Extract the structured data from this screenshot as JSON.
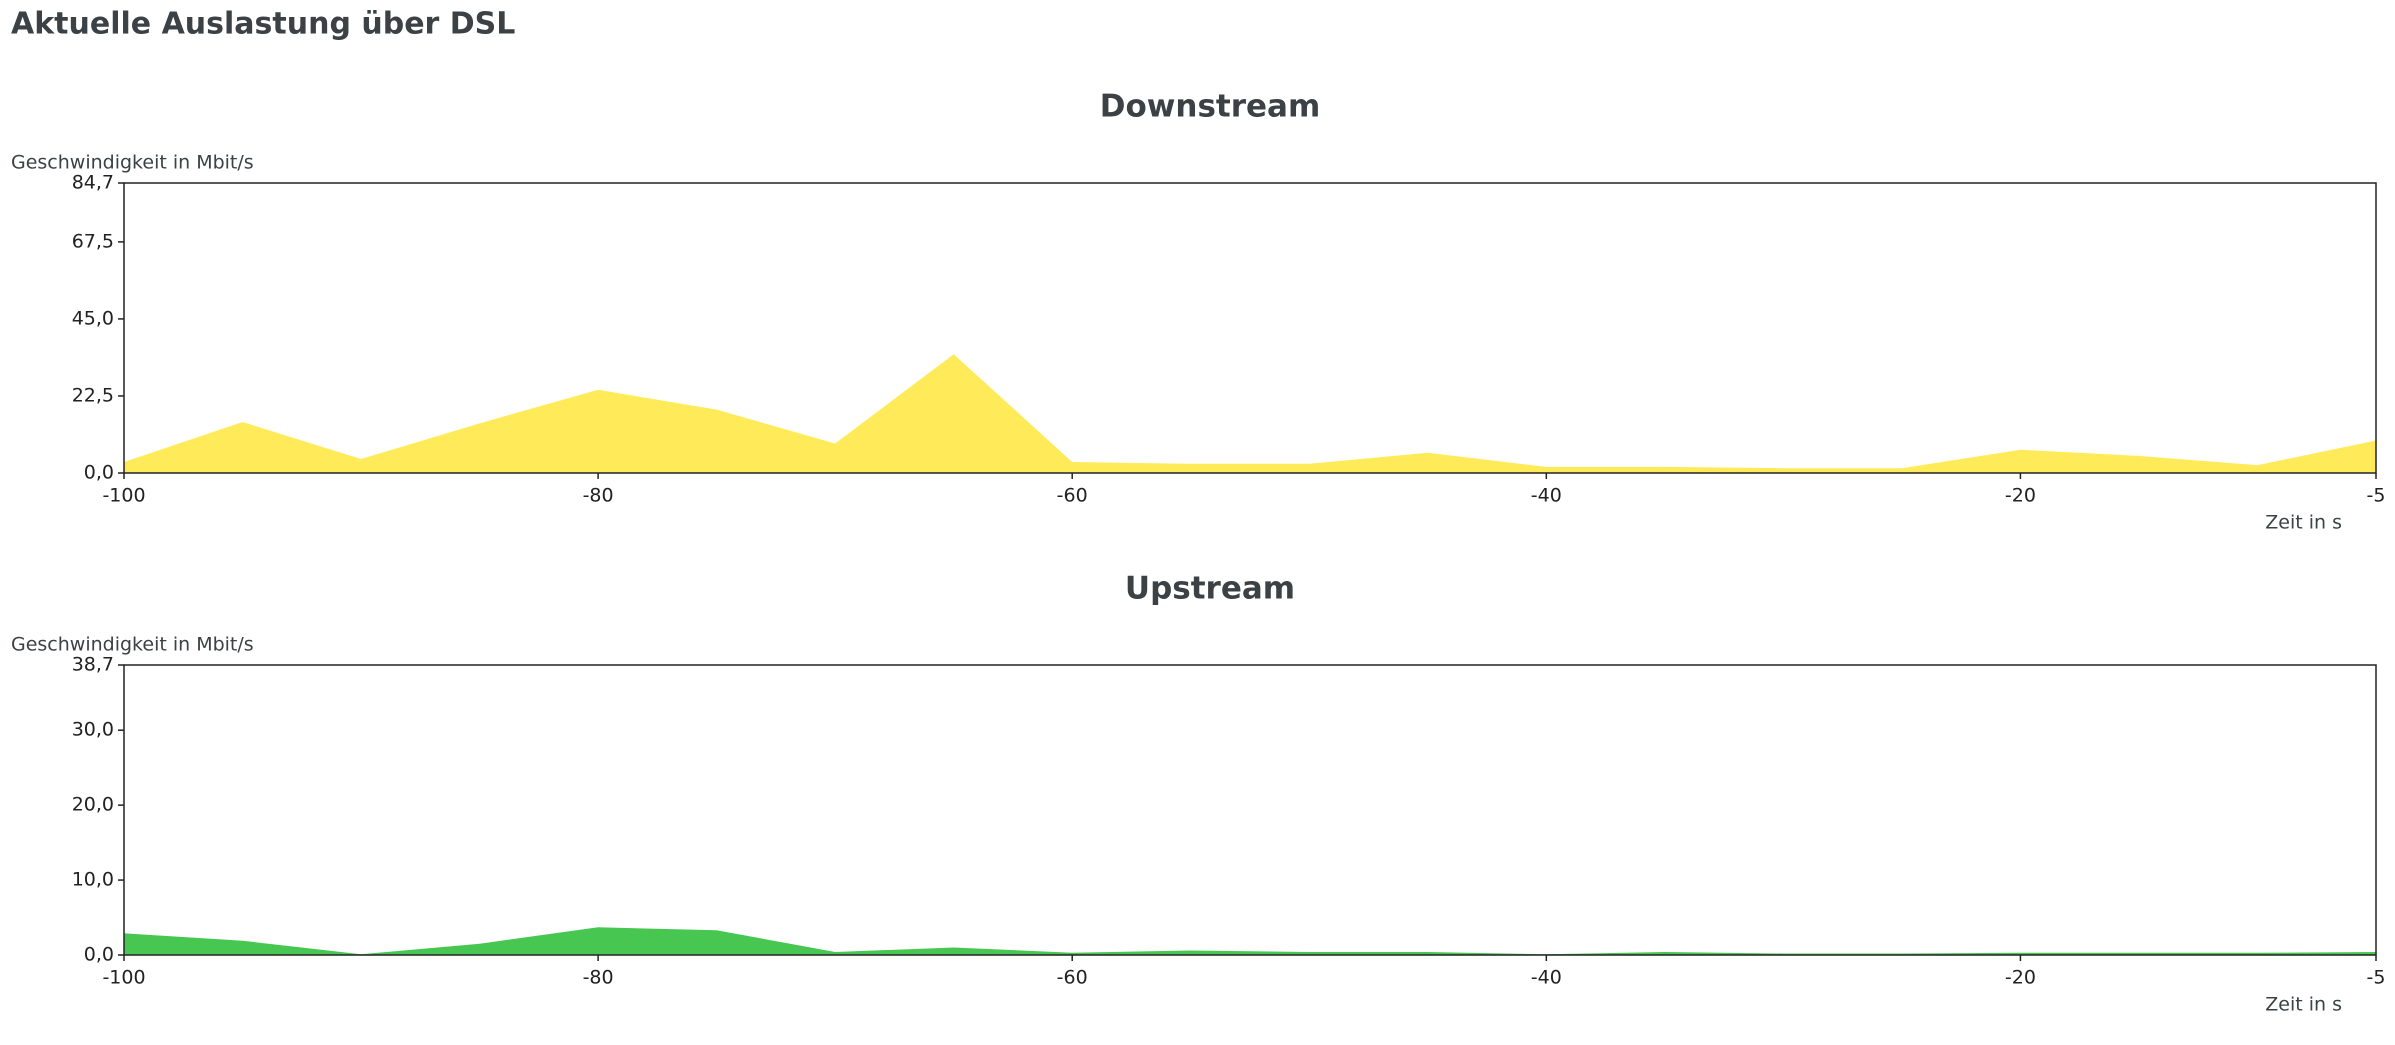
{
  "title": "Aktuelle Auslastung über DSL",
  "chart_data": [
    {
      "type": "area",
      "title": "Downstream",
      "ylabel": "Geschwindigkeit in Mbit/s",
      "xlabel": "Zeit in s",
      "color": "#ffeb5a",
      "x": [
        -100,
        -95,
        -90,
        -85,
        -80,
        -75,
        -70,
        -65,
        -60,
        -55,
        -50,
        -45,
        -40,
        -35,
        -30,
        -25,
        -20,
        -15,
        -10,
        -5
      ],
      "values": [
        3.2,
        14.9,
        4.1,
        14.5,
        24.3,
        18.5,
        8.6,
        34.7,
        3.2,
        2.7,
        2.7,
        5.9,
        1.8,
        1.8,
        1.4,
        1.4,
        6.8,
        5.0,
        2.3,
        9.5
      ],
      "xlim": [
        -100,
        -5
      ],
      "xticks": [
        -100,
        -80,
        -60,
        -40,
        -20,
        -5
      ],
      "ylim": [
        0,
        84.7
      ],
      "yticks": [
        {
          "value": 0,
          "label": "0,0"
        },
        {
          "value": 22.5,
          "label": "22,5"
        },
        {
          "value": 45,
          "label": "45,0"
        },
        {
          "value": 67.5,
          "label": "67,5"
        },
        {
          "value": 84.7,
          "label": "84,7"
        }
      ]
    },
    {
      "type": "area",
      "title": "Upstream",
      "ylabel": "Geschwindigkeit in Mbit/s",
      "xlabel": "Zeit in s",
      "color": "#47c752",
      "x": [
        -100,
        -95,
        -90,
        -85,
        -80,
        -75,
        -70,
        -65,
        -60,
        -55,
        -50,
        -45,
        -40,
        -35,
        -30,
        -25,
        -20,
        -15,
        -10,
        -5
      ],
      "values": [
        2.9,
        1.9,
        0.1,
        1.5,
        3.7,
        3.3,
        0.4,
        1.0,
        0.3,
        0.6,
        0.4,
        0.4,
        0.1,
        0.4,
        0.2,
        0.2,
        0.3,
        0.3,
        0.3,
        0.4
      ],
      "xlim": [
        -100,
        -5
      ],
      "xticks": [
        -100,
        -80,
        -60,
        -40,
        -20,
        -5
      ],
      "ylim": [
        0,
        38.7
      ],
      "yticks": [
        {
          "value": 0,
          "label": "0,0"
        },
        {
          "value": 10,
          "label": "10,0"
        },
        {
          "value": 20,
          "label": "20,0"
        },
        {
          "value": 30,
          "label": "30,0"
        },
        {
          "value": 38.7,
          "label": "38,7"
        }
      ]
    }
  ]
}
